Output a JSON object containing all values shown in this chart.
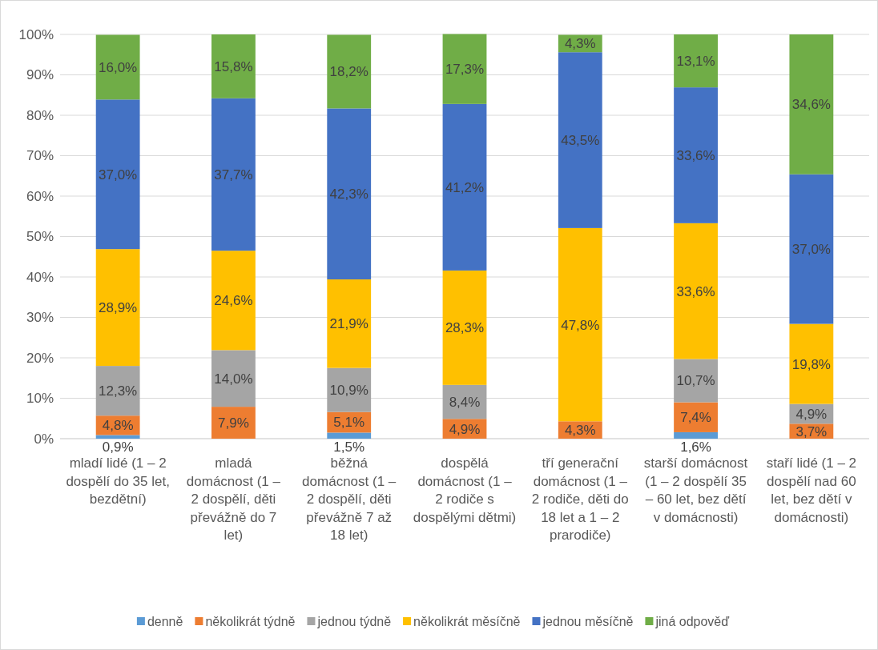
{
  "chart_data": {
    "type": "bar",
    "stacked": true,
    "categories": [
      "mladí lidé (1 – 2 dospělí do 35 let, bezdětní)",
      "mladá domácnost (1 – 2 dospělí, děti převážně do 7 let)",
      "běžná domácnost (1 – 2 dospělí, děti převážně 7 až 18 let)",
      "dospělá domácnost (1 – 2 rodiče s dospělými dětmi)",
      "tří generační domácnost (1 – 2 rodiče, děti do 18 let a 1 – 2 prarodiče)",
      "starší domácnost (1 – 2 dospělí 35 – 60 let, bez dětí v domácnosti)",
      "staří lidé (1 – 2 dospělí nad 60 let, bez dětí v domácnosti)"
    ],
    "series": [
      {
        "name": "denně",
        "color": "#5b9bd5",
        "values": [
          0.9,
          0,
          1.5,
          0,
          0,
          1.6,
          0
        ],
        "value_labels": [
          "0,9%",
          null,
          "1,5%",
          null,
          null,
          "1,6%",
          null
        ]
      },
      {
        "name": "několikrát týdně",
        "color": "#ed7d31",
        "values": [
          4.8,
          7.9,
          5.1,
          4.9,
          4.3,
          7.4,
          3.7
        ],
        "value_labels": [
          "4,8%",
          "7,9%",
          "5,1%",
          "4,9%",
          "4,3%",
          "7,4%",
          "3,7%"
        ]
      },
      {
        "name": "jednou týdně",
        "color": "#a5a5a5",
        "values": [
          12.3,
          14.0,
          10.9,
          8.4,
          0,
          10.7,
          4.9
        ],
        "value_labels": [
          "12,3%",
          "14,0%",
          "10,9%",
          "8,4%",
          null,
          "10,7%",
          "4,9%"
        ]
      },
      {
        "name": "několikrát měsíčně",
        "color": "#ffc000",
        "values": [
          28.9,
          24.6,
          21.9,
          28.3,
          47.8,
          33.6,
          19.8
        ],
        "value_labels": [
          "28,9%",
          "24,6%",
          "21,9%",
          "28,3%",
          "47,8%",
          "33,6%",
          "19,8%"
        ]
      },
      {
        "name": "jednou měsíčně",
        "color": "#4472c4",
        "values": [
          37.0,
          37.7,
          42.3,
          41.2,
          43.5,
          33.6,
          37.0
        ],
        "value_labels": [
          "37,0%",
          "37,7%",
          "42,3%",
          "41,2%",
          "43,5%",
          "33,6%",
          "37,0%"
        ]
      },
      {
        "name": "jiná odpověď",
        "color": "#70ad47",
        "values": [
          16.0,
          15.8,
          18.2,
          17.3,
          4.3,
          13.1,
          34.6
        ],
        "value_labels": [
          "16,0%",
          "15,8%",
          "18,2%",
          "17,3%",
          "4,3%",
          "13,1%",
          "34,6%"
        ]
      }
    ],
    "ylim": [
      0,
      100
    ],
    "yticks": [
      {
        "value": 0,
        "label": "0%"
      },
      {
        "value": 10,
        "label": "10%"
      },
      {
        "value": 20,
        "label": "20%"
      },
      {
        "value": 30,
        "label": "30%"
      },
      {
        "value": 40,
        "label": "40%"
      },
      {
        "value": 50,
        "label": "50%"
      },
      {
        "value": 60,
        "label": "60%"
      },
      {
        "value": 70,
        "label": "70%"
      },
      {
        "value": 80,
        "label": "80%"
      },
      {
        "value": 90,
        "label": "90%"
      },
      {
        "value": 100,
        "label": "100%"
      }
    ],
    "grid": "y",
    "legend": "bottom"
  }
}
